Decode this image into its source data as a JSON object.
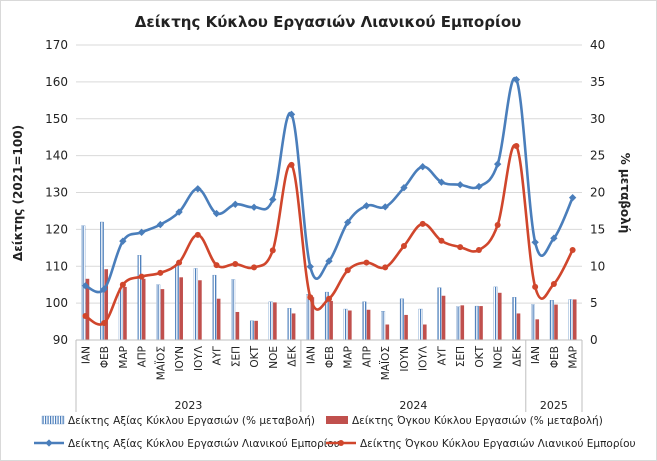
{
  "chart_data": {
    "type": "bar+line",
    "title": "Δείκτης Κύκλου Εργασιών Λιανικού Εμπορίου",
    "ylabel": "Δείκτης (2021=100)",
    "y2label": "% μεταβολή",
    "ylim": [
      90,
      170
    ],
    "yticks": [
      "90",
      "100",
      "110",
      "120",
      "130",
      "140",
      "150",
      "160",
      "170"
    ],
    "y2lim": [
      0,
      40
    ],
    "y2ticks": [
      "0",
      "5",
      "10",
      "15",
      "20",
      "25",
      "30",
      "35",
      "40"
    ],
    "categories": [
      "ΙΑΝ",
      "ΦΕΒ",
      "ΜΑΡ",
      "ΑΠΡ",
      "ΜΑΪΟΣ",
      "ΙΟΥΝ",
      "ΙΟΥΛ",
      "ΑΥΓ",
      "ΣΕΠ",
      "ΟΚΤ",
      "ΝΟΕ",
      "ΔΕΚ",
      "ΙΑΝ",
      "ΦΕΒ",
      "ΜΑΡ",
      "ΑΠΡ",
      "ΜΑΪΟΣ",
      "ΙΟΥΝ",
      "ΙΟΥΛ",
      "ΑΥΓ",
      "ΣΕΠ",
      "ΟΚΤ",
      "ΝΟΕ",
      "ΔΕΚ",
      "ΙΑΝ",
      "ΦΕΒ",
      "ΜΑΡ"
    ],
    "years": [
      {
        "label": "2023",
        "start": 0,
        "end": 11
      },
      {
        "label": "2024",
        "start": 12,
        "end": 23
      },
      {
        "label": "2025",
        "start": 24,
        "end": 26
      }
    ],
    "grid": true,
    "legend_position": "bottom",
    "series": [
      {
        "name": "Δείκτης Αξίας Κύκλου Εργασιών (% μεταβολή)",
        "kind": "bar",
        "axis": "y2",
        "color": "#4f81bd",
        "pattern": "hatched",
        "values": [
          15.5,
          16.0,
          7.0,
          11.5,
          7.5,
          10.3,
          9.7,
          8.8,
          8.2,
          2.6,
          5.2,
          4.3,
          6.2,
          6.5,
          4.2,
          5.2,
          3.9,
          5.6,
          4.2,
          7.1,
          4.5,
          4.6,
          7.2,
          5.8,
          4.8,
          5.4,
          5.5
        ]
      },
      {
        "name": "Δείκτης Όγκου Κύκλου Εργασιών (% μεταβολή)",
        "kind": "bar",
        "axis": "y2",
        "color": "#c0504d",
        "pattern": "solid",
        "values": [
          8.3,
          9.6,
          7.2,
          8.3,
          6.9,
          8.5,
          8.1,
          5.6,
          3.8,
          2.6,
          5.1,
          3.6,
          5.8,
          5.3,
          4.0,
          4.1,
          2.1,
          3.4,
          2.1,
          6.0,
          4.7,
          4.6,
          6.4,
          3.6,
          2.8,
          4.8,
          5.5
        ]
      },
      {
        "name": "Δείκτης Αξίας Κύκλου Εργασιών Λιανικού Εμπορίου",
        "kind": "line",
        "axis": "y",
        "color": "#4a7ebb",
        "values": [
          104.7,
          103.8,
          116.8,
          119.2,
          121.3,
          124.7,
          131.0,
          124.3,
          126.8,
          126.0,
          128.1,
          151.2,
          109.9,
          111.4,
          121.9,
          126.4,
          126.1,
          131.3,
          137.0,
          132.8,
          132.1,
          131.6,
          137.7,
          160.6,
          116.5,
          117.6,
          128.6
        ]
      },
      {
        "name": "Δείκτης Όγκου Κύκλου Εργασιών Λιανικού Εμπορίου",
        "kind": "line",
        "axis": "y",
        "color": "#d0462c",
        "values": [
          96.5,
          94.6,
          105.0,
          107.2,
          108.2,
          111.0,
          118.5,
          110.3,
          110.6,
          109.7,
          114.3,
          137.5,
          101.6,
          101.2,
          108.9,
          111.0,
          109.7,
          115.5,
          121.5,
          116.9,
          115.2,
          114.4,
          121.2,
          142.6,
          104.4,
          105.2,
          114.4
        ]
      }
    ]
  }
}
